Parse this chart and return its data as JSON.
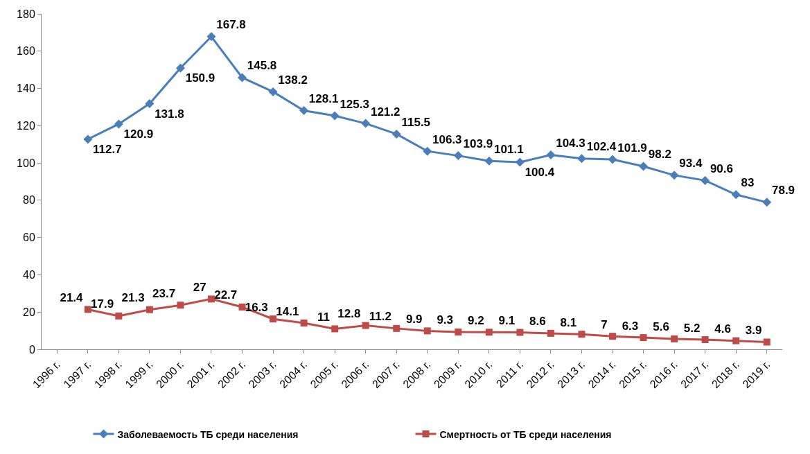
{
  "chart_data": {
    "type": "line",
    "categories": [
      "1996 г.",
      "1997 г.",
      "1998 г.",
      "1999 г.",
      "2000 г.",
      "2001 г.",
      "2002 г.",
      "2003 г.",
      "2004 г.",
      "2005 г.",
      "2006 г.",
      "2007 г.",
      "2008 г.",
      "2009 г.",
      "2010 г.",
      "2011 г.",
      "2012 г.",
      "2013 г.",
      "2014 г.",
      "2015 г.",
      "2016 г.",
      "2017 г.",
      "2018 г.",
      "2019 г."
    ],
    "series": [
      {
        "name": "Заболеваемость ТБ среди населения",
        "color": "#4a7ebb",
        "marker": "diamond",
        "values": [
          null,
          112.7,
          120.9,
          131.8,
          150.9,
          167.8,
          145.8,
          138.2,
          128.1,
          125.3,
          121.2,
          115.5,
          106.3,
          103.9,
          101.1,
          100.4,
          104.3,
          102.4,
          101.9,
          98.2,
          93.4,
          90.6,
          83,
          78.9
        ]
      },
      {
        "name": "Смертность от ТБ среди населения",
        "color": "#be4b48",
        "marker": "square",
        "values": [
          null,
          21.4,
          17.9,
          21.3,
          23.7,
          27,
          22.7,
          16.3,
          14.1,
          11,
          12.8,
          11.2,
          9.9,
          9.3,
          9.2,
          9.1,
          8.6,
          8.1,
          7,
          6.3,
          5.6,
          5.2,
          4.6,
          3.9
        ]
      }
    ],
    "ylim": [
      0,
      180
    ],
    "yticks": [
      0,
      20,
      40,
      60,
      80,
      100,
      120,
      140,
      160,
      180
    ],
    "grid": false,
    "legend": "bottom",
    "data_labels": true
  }
}
